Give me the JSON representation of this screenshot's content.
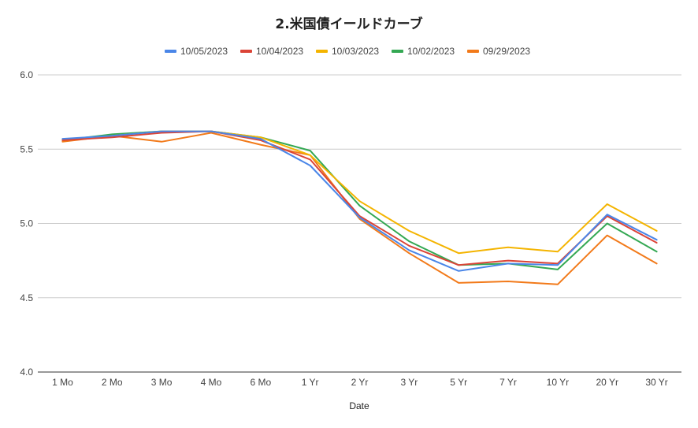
{
  "chart_data": {
    "type": "line",
    "title": "2.米国債イールドカーブ",
    "xlabel": "Date",
    "ylabel": "",
    "ylim": [
      4.0,
      6.0
    ],
    "yticks": [
      "4.0",
      "4.5",
      "5.0",
      "5.5",
      "6.0"
    ],
    "grid": true,
    "legend_position": "top",
    "categories": [
      "1 Mo",
      "2 Mo",
      "3 Mo",
      "4 Mo",
      "6 Mo",
      "1 Yr",
      "2 Yr",
      "3 Yr",
      "5 Yr",
      "7 Yr",
      "10 Yr",
      "20 Yr",
      "30 Yr"
    ],
    "series": [
      {
        "name": "10/05/2023",
        "color": "#4a86e8",
        "values": [
          5.57,
          5.59,
          5.62,
          5.62,
          5.57,
          5.39,
          5.04,
          4.82,
          4.68,
          4.73,
          4.72,
          5.06,
          4.89
        ]
      },
      {
        "name": "10/04/2023",
        "color": "#db4437",
        "values": [
          5.56,
          5.58,
          5.61,
          5.62,
          5.56,
          5.43,
          5.05,
          4.85,
          4.72,
          4.75,
          4.73,
          5.05,
          4.87
        ]
      },
      {
        "name": "10/03/2023",
        "color": "#f4b400",
        "values": [
          5.56,
          5.59,
          5.62,
          5.62,
          5.58,
          5.46,
          5.15,
          4.95,
          4.8,
          4.84,
          4.81,
          5.13,
          4.95
        ]
      },
      {
        "name": "10/02/2023",
        "color": "#34a853",
        "values": [
          5.56,
          5.6,
          5.62,
          5.62,
          5.58,
          5.49,
          5.12,
          4.88,
          4.72,
          4.73,
          4.69,
          5.0,
          4.81
        ]
      },
      {
        "name": "09/29/2023",
        "color": "#f27a1a",
        "values": [
          5.55,
          5.59,
          5.55,
          5.61,
          5.53,
          5.46,
          5.03,
          4.8,
          4.6,
          4.61,
          4.59,
          4.92,
          4.73
        ]
      }
    ]
  }
}
